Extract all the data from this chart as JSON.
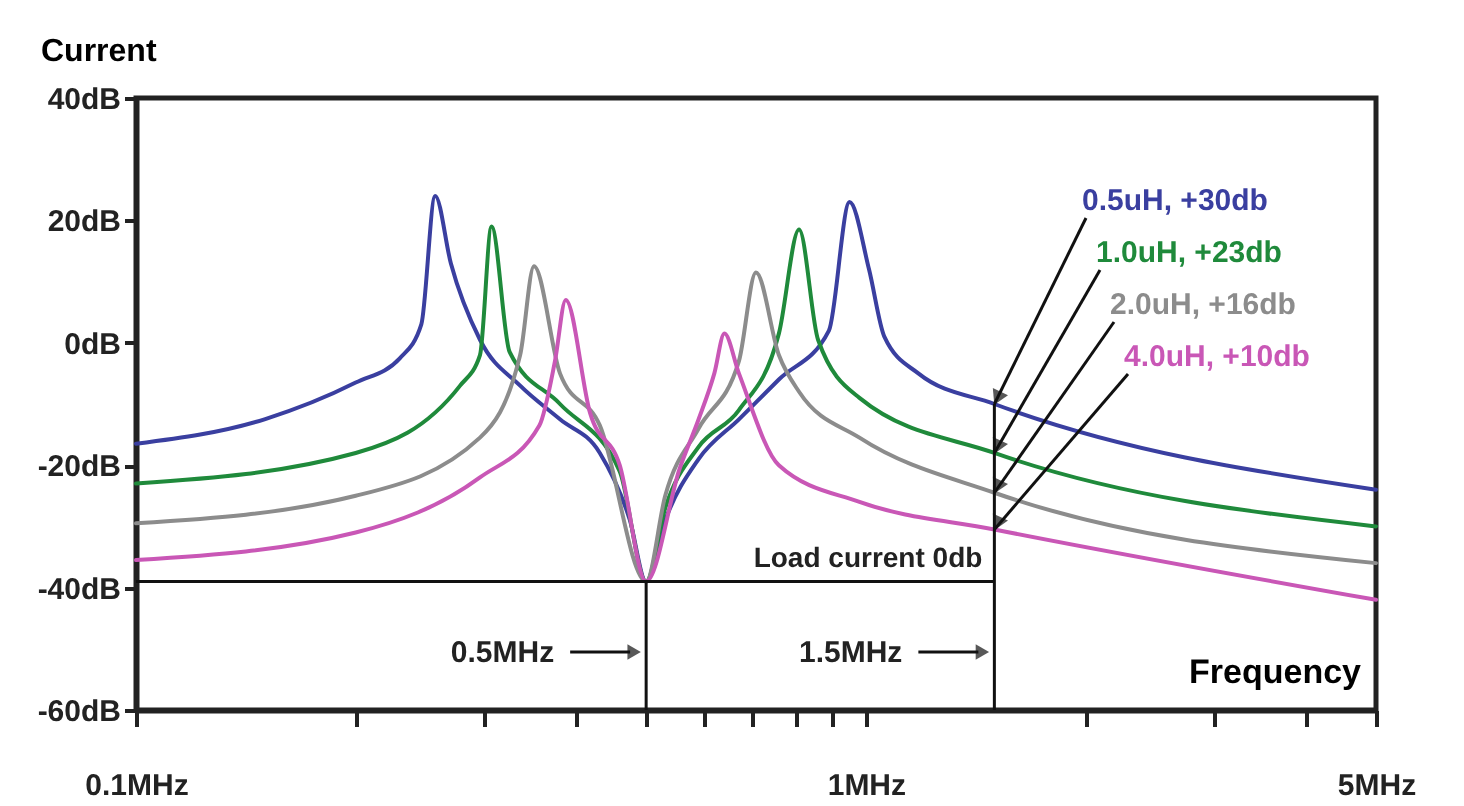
{
  "chart_data": {
    "type": "line",
    "ylabel": "Current",
    "xlabel": "Frequency",
    "log": "x",
    "xlim": [
      0.1,
      5
    ],
    "ylim": [
      -60,
      40
    ],
    "xticks": [
      {
        "value": 0.1,
        "label": "0.1MHz"
      },
      {
        "value": 0.2,
        "label": null
      },
      {
        "value": 0.3,
        "label": null
      },
      {
        "value": 0.4,
        "label": null
      },
      {
        "value": 0.5,
        "label": null
      },
      {
        "value": 0.6,
        "label": null
      },
      {
        "value": 0.7,
        "label": null
      },
      {
        "value": 0.8,
        "label": null
      },
      {
        "value": 0.9,
        "label": null
      },
      {
        "value": 1,
        "label": "1MHz"
      },
      {
        "value": 2,
        "label": null
      },
      {
        "value": 3,
        "label": null
      },
      {
        "value": 4,
        "label": null
      },
      {
        "value": 5,
        "label": "5MHz"
      }
    ],
    "yticks": [
      {
        "value": -60,
        "label": "-60dB"
      },
      {
        "value": -40,
        "label": "-40dB"
      },
      {
        "value": -20,
        "label": "-20dB"
      },
      {
        "value": 0,
        "label": "0dB"
      },
      {
        "value": 20,
        "label": "20dB"
      },
      {
        "value": 40,
        "label": "40dB"
      }
    ],
    "series": [
      {
        "name": "0.5uH, +30db",
        "color": "#3a3fa0",
        "x": [
          0.1,
          0.15,
          0.2,
          0.23,
          0.246,
          0.257,
          0.27,
          0.296,
          0.336,
          0.381,
          0.432,
          0.475,
          0.5,
          0.531,
          0.59,
          0.67,
          0.76,
          0.89,
          0.95,
          1.01,
          1.06,
          1.18,
          1.5,
          5
        ],
        "values": [
          -16.5,
          -12.5,
          -6.5,
          -2.5,
          3,
          24,
          13,
          0.5,
          -7,
          -12.5,
          -18,
          -29,
          -39,
          -29,
          -19,
          -12.5,
          -6,
          2,
          23,
          12,
          1,
          -5,
          -10,
          -24
        ]
      },
      {
        "name": "1.0uH, +23db",
        "color": "#1f8a3b",
        "x": [
          0.1,
          0.2,
          0.278,
          0.296,
          0.307,
          0.325,
          0.381,
          0.46,
          0.5,
          0.531,
          0.59,
          0.67,
          0.76,
          0.81,
          0.86,
          0.98,
          1.5,
          5
        ],
        "values": [
          -23,
          -18,
          -7,
          -2,
          19,
          -1.5,
          -10,
          -21,
          -39,
          -27,
          -17,
          -11,
          1.5,
          18.5,
          0.5,
          -9,
          -18,
          -30
        ]
      },
      {
        "name": "2.0uH, +16db",
        "color": "#8c8c8c",
        "x": [
          0.1,
          0.2,
          0.296,
          0.336,
          0.351,
          0.381,
          0.432,
          0.5,
          0.531,
          0.59,
          0.67,
          0.707,
          0.76,
          0.81,
          0.98,
          1.5,
          5
        ],
        "values": [
          -29.5,
          -25,
          -15.5,
          -2,
          12.5,
          -5,
          -13.5,
          -39,
          -25,
          -14,
          -3,
          11.5,
          -2,
          -8,
          -15.5,
          -24.5,
          -36
        ]
      },
      {
        "name": "4.0uH, +10db",
        "color": "#c957b6",
        "x": [
          0.1,
          0.2,
          0.296,
          0.357,
          0.375,
          0.388,
          0.419,
          0.46,
          0.5,
          0.556,
          0.59,
          0.62,
          0.64,
          0.67,
          0.76,
          0.98,
          1.5,
          5
        ],
        "values": [
          -35.5,
          -31,
          -22,
          -13.5,
          -3,
          7,
          -11.5,
          -20,
          -39,
          -20.5,
          -12.5,
          -5,
          1.5,
          -5,
          -20,
          -26,
          -30.5,
          -42
        ]
      }
    ],
    "ref_lines": [
      {
        "axis": "y",
        "value": -39,
        "label": "Load current 0db"
      },
      {
        "axis": "x",
        "value": 0.5,
        "label": "0.5MHz"
      },
      {
        "axis": "x",
        "value": 1.5,
        "label": "1.5MHz"
      }
    ]
  }
}
